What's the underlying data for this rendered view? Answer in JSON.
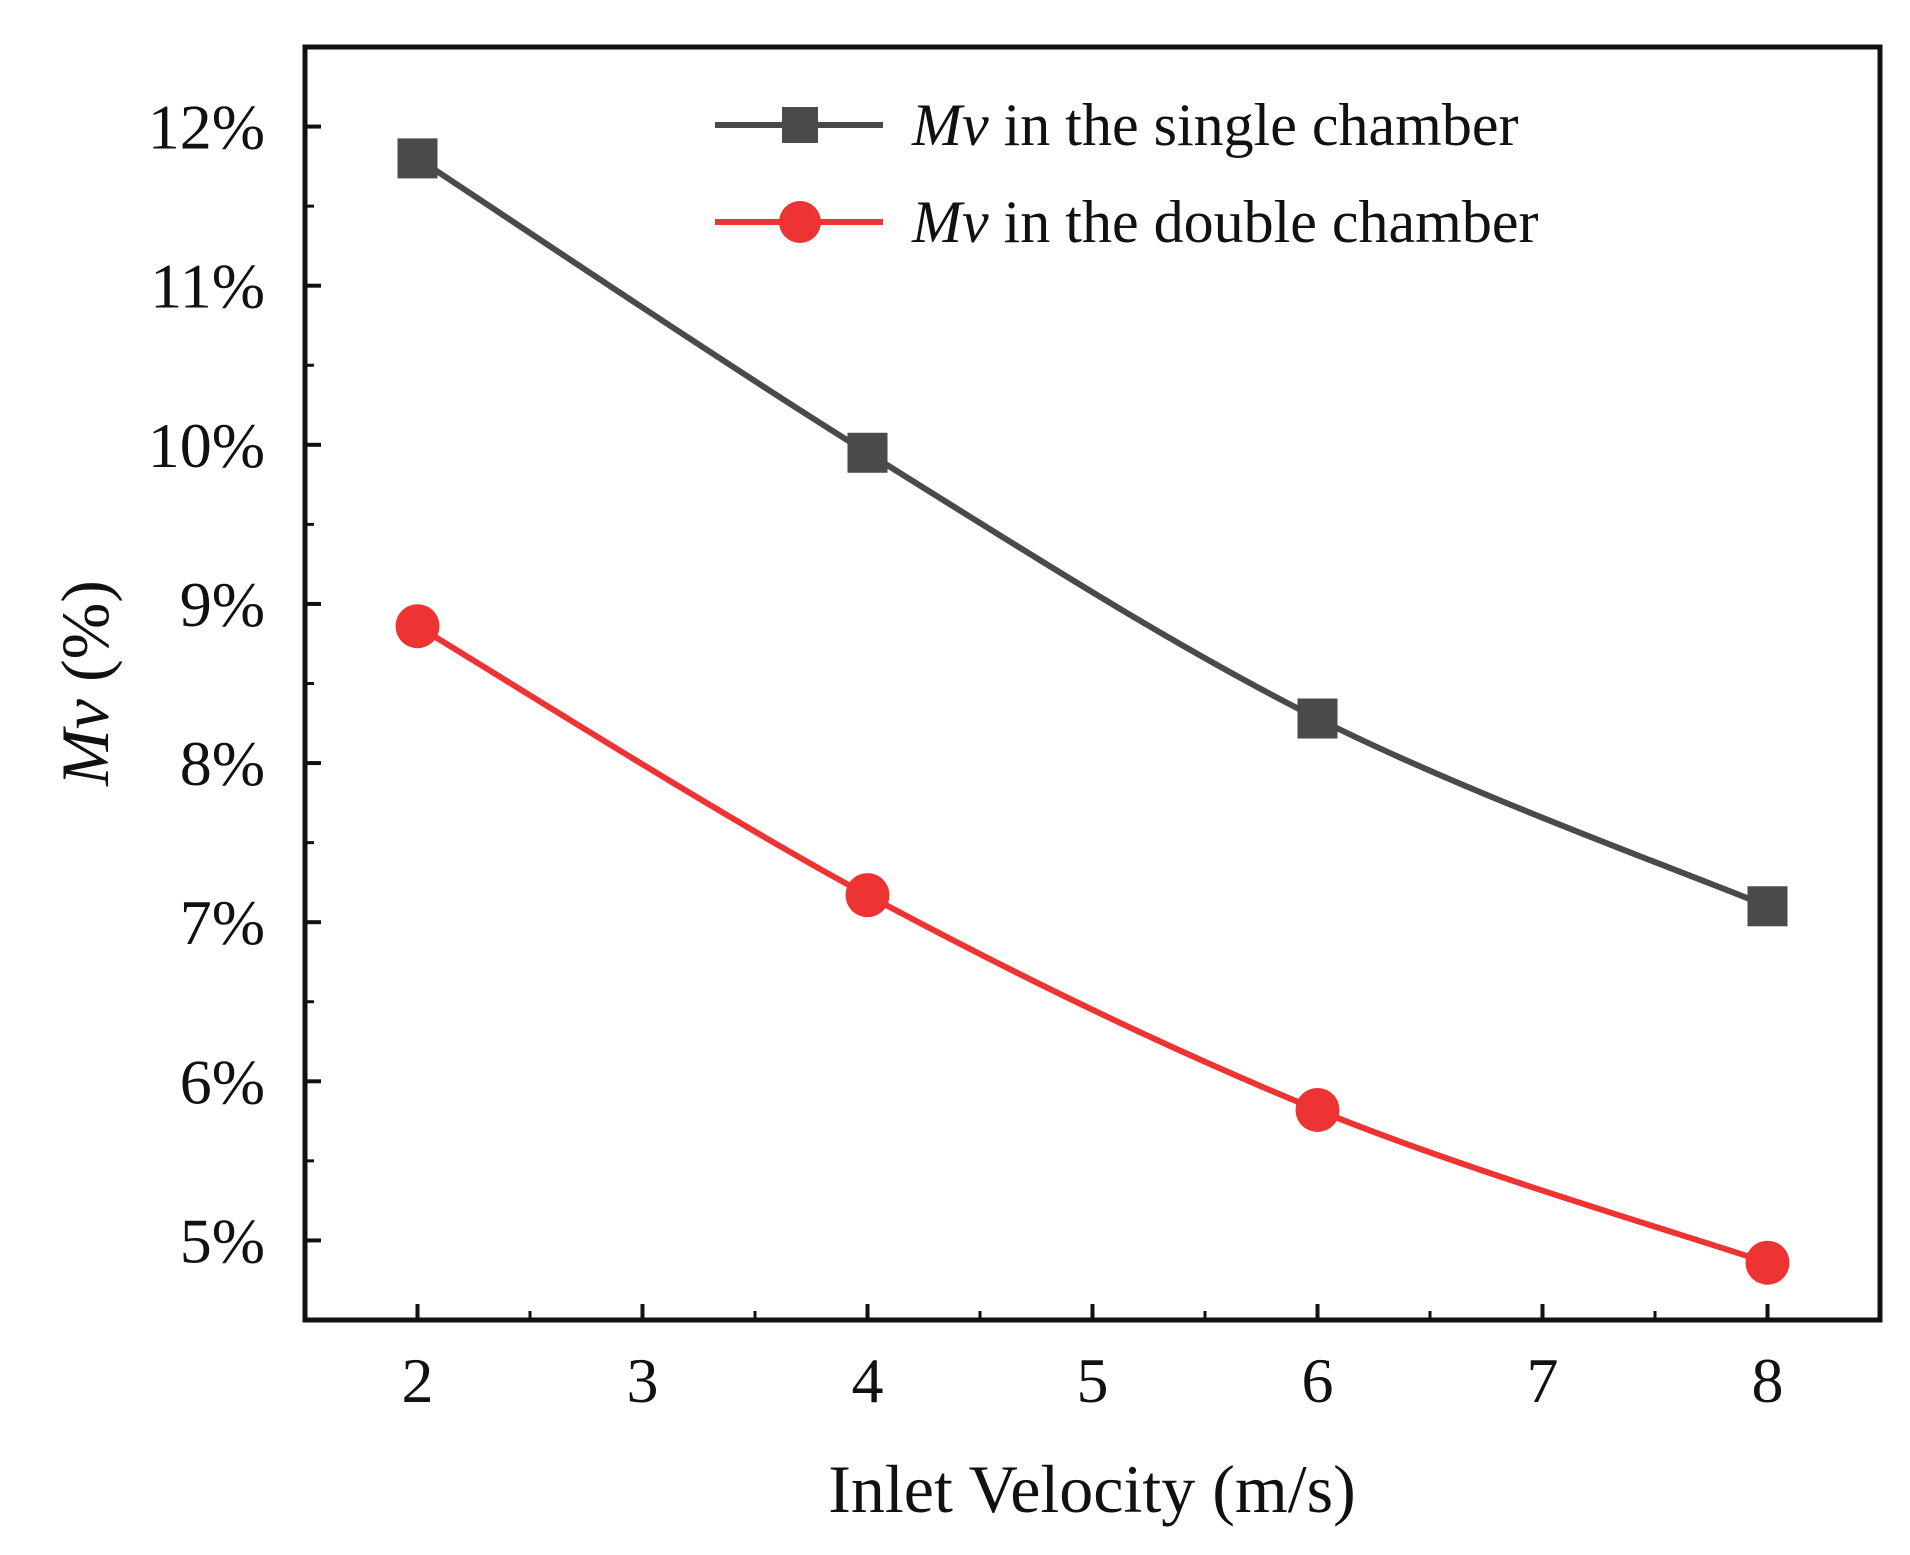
{
  "chart_data": {
    "type": "line",
    "title": "",
    "xlabel": "Inlet Velocity (m/s)",
    "ylabel": {
      "italic": "Mv",
      "rest": " (%)"
    },
    "x": [
      2,
      4,
      6,
      8
    ],
    "xlim": [
      1.5,
      8.5
    ],
    "ylim": [
      4.5,
      12.5
    ],
    "x_ticks": [
      2,
      3,
      4,
      5,
      6,
      7,
      8
    ],
    "y_ticks": [
      5,
      6,
      7,
      8,
      9,
      10,
      11,
      12
    ],
    "y_tick_labels": [
      "5%",
      "6%",
      "7%",
      "8%",
      "9%",
      "10%",
      "11%",
      "12%"
    ],
    "grid": false,
    "legend_position": "top-right",
    "series": [
      {
        "name": "Mv in the single chamber",
        "name_italic": "Mv",
        "name_rest": " in the single chamber",
        "marker": "square",
        "color": "#4a4a4a",
        "values": [
          11.8,
          9.95,
          8.28,
          7.1
        ]
      },
      {
        "name": "Mv in the double chamber",
        "name_italic": "Mv",
        "name_rest": " in the double chamber",
        "marker": "circle",
        "color": "#ee3333",
        "values": [
          8.86,
          7.17,
          5.82,
          4.86
        ]
      }
    ]
  }
}
